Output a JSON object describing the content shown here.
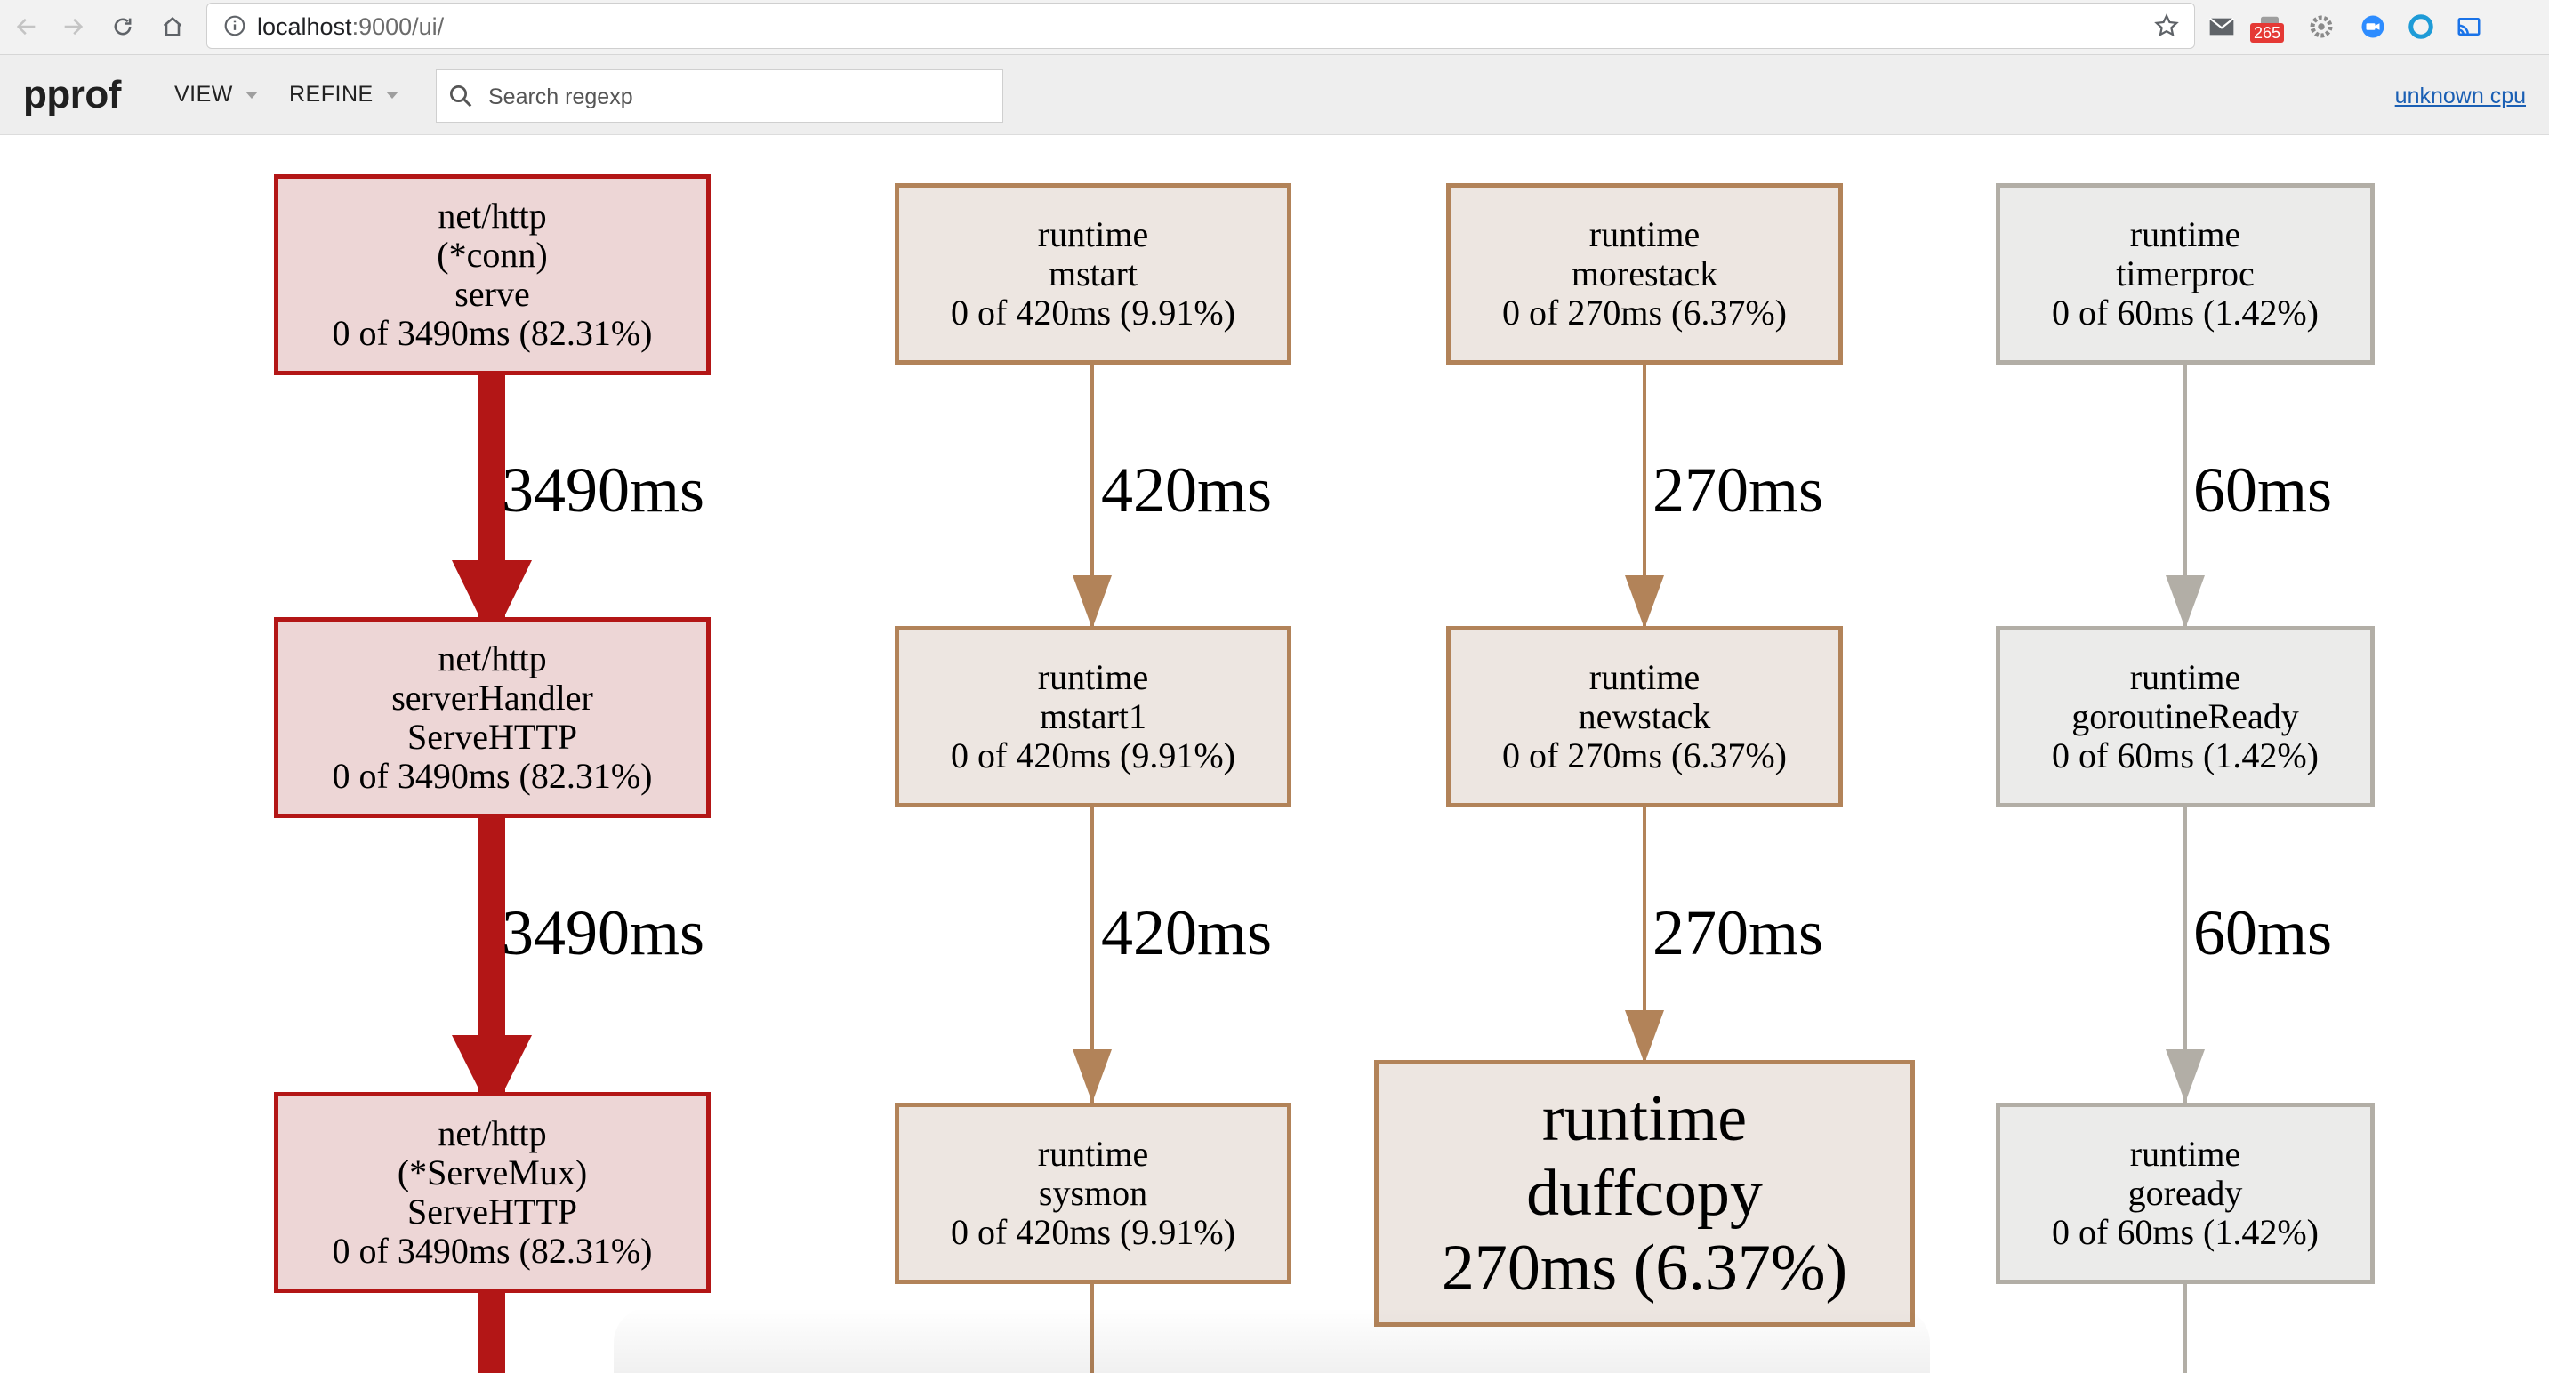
{
  "browser": {
    "url_host": "localhost",
    "url_rest": ":9000/ui/",
    "badge_count": "265",
    "icons": [
      "back-icon",
      "forward-icon",
      "reload-icon",
      "home-icon",
      "info-icon",
      "star-icon",
      "mail-icon",
      "extension-icon",
      "gear-icon",
      "video-icon",
      "circle-icon",
      "cast-icon"
    ]
  },
  "toolbar": {
    "brand": "pprof",
    "view_label": "VIEW",
    "refine_label": "REFINE",
    "search_placeholder": "Search regexp",
    "profile_link": "unknown cpu"
  },
  "colors": {
    "hot_fill": "#edd6d6",
    "hot_stroke": "#b31616",
    "warm_fill": "#ede6e1",
    "warm_stroke": "#b28359",
    "cool_fill": "#ebebea",
    "cool_stroke": "#b2aea6"
  },
  "graph": {
    "nodes": [
      {
        "lines": [
          "net/http",
          "(*conn)",
          "serve",
          "0 of 3490ms (82.31%)"
        ]
      },
      {
        "lines": [
          "net/http",
          "serverHandler",
          "ServeHTTP",
          "0 of 3490ms (82.31%)"
        ]
      },
      {
        "lines": [
          "net/http",
          "(*ServeMux)",
          "ServeHTTP",
          "0 of 3490ms (82.31%)"
        ]
      },
      {
        "lines": [
          "runtime",
          "mstart",
          "0 of 420ms (9.91%)"
        ]
      },
      {
        "lines": [
          "runtime",
          "mstart1",
          "0 of 420ms (9.91%)"
        ]
      },
      {
        "lines": [
          "runtime",
          "sysmon",
          "0 of 420ms (9.91%)"
        ]
      },
      {
        "lines": [
          "runtime",
          "morestack",
          "0 of 270ms (6.37%)"
        ]
      },
      {
        "lines": [
          "runtime",
          "newstack",
          "0 of 270ms (6.37%)"
        ]
      },
      {
        "lines": [
          "runtime",
          "duffcopy",
          "270ms (6.37%)"
        ]
      },
      {
        "lines": [
          "runtime",
          "timerproc",
          "0 of 60ms (1.42%)"
        ]
      },
      {
        "lines": [
          "runtime",
          "goroutineReady",
          "0 of 60ms (1.42%)"
        ]
      },
      {
        "lines": [
          "runtime",
          "goready",
          "0 of 60ms (1.42%)"
        ]
      }
    ],
    "edges": [
      {
        "label": "3490ms"
      },
      {
        "label": "3490ms"
      },
      {
        "label": "420ms"
      },
      {
        "label": "420ms"
      },
      {
        "label": "270ms"
      },
      {
        "label": "270ms"
      },
      {
        "label": "60ms"
      },
      {
        "label": "60ms"
      }
    ]
  }
}
